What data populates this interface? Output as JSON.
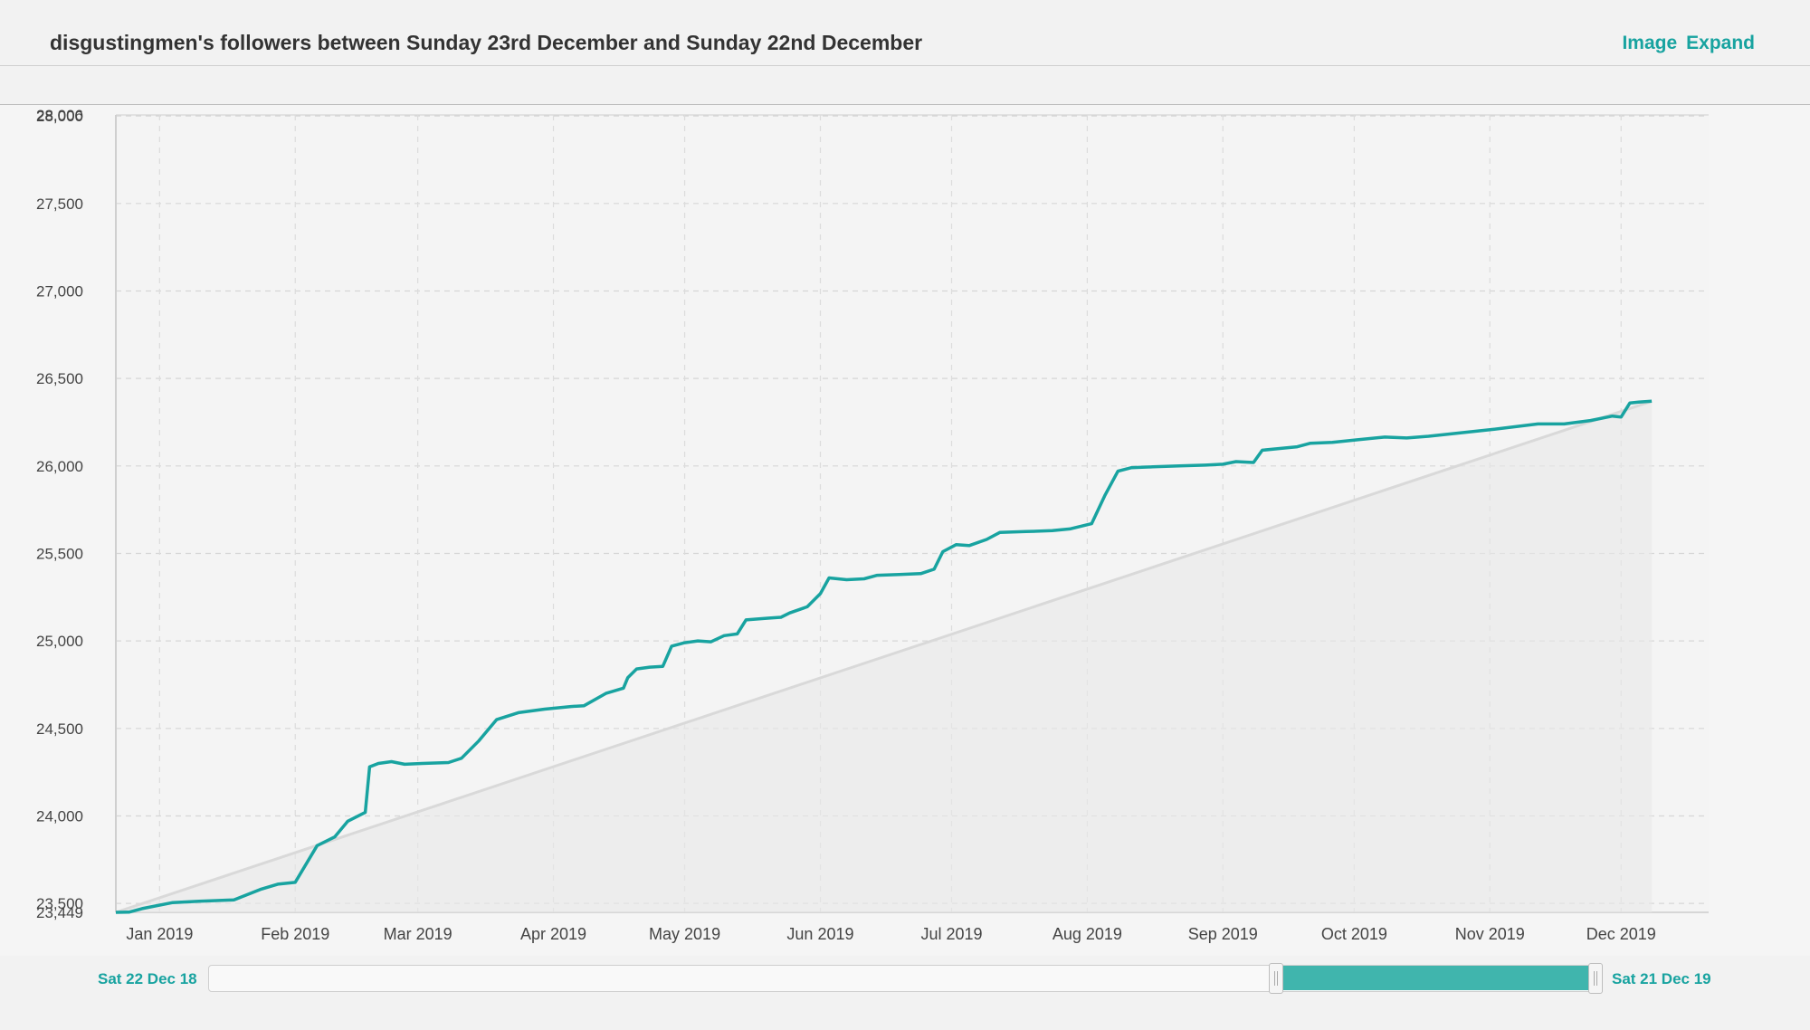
{
  "header": {
    "title": "disgustingmen's followers between Sunday 23rd December and Sunday 22nd December",
    "image_label": "Image",
    "expand_label": "Expand"
  },
  "navigator": {
    "start_label": "Sat 22 Dec 18",
    "end_label": "Sat 21 Dec 19",
    "selection_start_fraction": 0.8,
    "selection_end_fraction": 1.0
  },
  "colors": {
    "series": "#18a3a0",
    "trend": "#d9d9d9",
    "accent": "#18a3a0",
    "navigator_fill": "#40b5ad"
  },
  "chart_data": {
    "type": "line",
    "title": "",
    "xlabel": "",
    "ylabel": "",
    "y_tick_labels": [
      "23,449",
      "23,500",
      "24,000",
      "24,500",
      "25,000",
      "25,500",
      "26,000",
      "26,500",
      "27,000",
      "27,500",
      "28,000",
      "28,006"
    ],
    "x_tick_labels": [
      "Jan 2019",
      "Feb 2019",
      "Mar 2019",
      "Apr 2019",
      "May 2019",
      "Jun 2019",
      "Jul 2019",
      "Aug 2019",
      "Sep 2019",
      "Oct 2019",
      "Nov 2019",
      "Dec 2019"
    ],
    "x_range": [
      "2018-12-22",
      "2019-12-21"
    ],
    "ylim": [
      23449,
      28006
    ],
    "grid": true,
    "legend": "none",
    "series": [
      {
        "role": "followers",
        "points": [
          [
            "2018-12-22",
            23449
          ],
          [
            "2018-12-25",
            23450
          ],
          [
            "2018-12-28",
            23470
          ],
          [
            "2019-01-04",
            23505
          ],
          [
            "2019-01-10",
            23512
          ],
          [
            "2019-01-18",
            23520
          ],
          [
            "2019-01-24",
            23580
          ],
          [
            "2019-01-28",
            23610
          ],
          [
            "2019-02-01",
            23620
          ],
          [
            "2019-02-06",
            23830
          ],
          [
            "2019-02-10",
            23880
          ],
          [
            "2019-02-13",
            23970
          ],
          [
            "2019-02-17",
            24020
          ],
          [
            "2019-02-18",
            24280
          ],
          [
            "2019-02-20",
            24300
          ],
          [
            "2019-02-23",
            24310
          ],
          [
            "2019-02-26",
            24295
          ],
          [
            "2019-03-02",
            24300
          ],
          [
            "2019-03-08",
            24305
          ],
          [
            "2019-03-11",
            24330
          ],
          [
            "2019-03-15",
            24430
          ],
          [
            "2019-03-19",
            24550
          ],
          [
            "2019-03-24",
            24590
          ],
          [
            "2019-03-30",
            24610
          ],
          [
            "2019-04-05",
            24625
          ],
          [
            "2019-04-08",
            24630
          ],
          [
            "2019-04-13",
            24700
          ],
          [
            "2019-04-17",
            24730
          ],
          [
            "2019-04-18",
            24790
          ],
          [
            "2019-04-20",
            24840
          ],
          [
            "2019-04-23",
            24850
          ],
          [
            "2019-04-26",
            24855
          ],
          [
            "2019-04-28",
            24970
          ],
          [
            "2019-05-01",
            24990
          ],
          [
            "2019-05-04",
            25000
          ],
          [
            "2019-05-07",
            24995
          ],
          [
            "2019-05-10",
            25030
          ],
          [
            "2019-05-13",
            25040
          ],
          [
            "2019-05-15",
            25120
          ],
          [
            "2019-05-20",
            25130
          ],
          [
            "2019-05-23",
            25135
          ],
          [
            "2019-05-25",
            25160
          ],
          [
            "2019-05-29",
            25195
          ],
          [
            "2019-06-01",
            25270
          ],
          [
            "2019-06-03",
            25360
          ],
          [
            "2019-06-07",
            25350
          ],
          [
            "2019-06-11",
            25355
          ],
          [
            "2019-06-14",
            25375
          ],
          [
            "2019-06-19",
            25380
          ],
          [
            "2019-06-24",
            25385
          ],
          [
            "2019-06-27",
            25410
          ],
          [
            "2019-06-29",
            25510
          ],
          [
            "2019-07-02",
            25550
          ],
          [
            "2019-07-05",
            25545
          ],
          [
            "2019-07-09",
            25580
          ],
          [
            "2019-07-12",
            25620
          ],
          [
            "2019-07-18",
            25625
          ],
          [
            "2019-07-24",
            25630
          ],
          [
            "2019-07-28",
            25640
          ],
          [
            "2019-08-02",
            25670
          ],
          [
            "2019-08-05",
            25830
          ],
          [
            "2019-08-08",
            25970
          ],
          [
            "2019-08-11",
            25990
          ],
          [
            "2019-08-16",
            25995
          ],
          [
            "2019-08-22",
            26000
          ],
          [
            "2019-08-28",
            26005
          ],
          [
            "2019-09-01",
            26010
          ],
          [
            "2019-09-04",
            26025
          ],
          [
            "2019-09-08",
            26020
          ],
          [
            "2019-09-10",
            26090
          ],
          [
            "2019-09-14",
            26100
          ],
          [
            "2019-09-18",
            26110
          ],
          [
            "2019-09-21",
            26130
          ],
          [
            "2019-09-26",
            26135
          ],
          [
            "2019-10-02",
            26150
          ],
          [
            "2019-10-08",
            26165
          ],
          [
            "2019-10-13",
            26160
          ],
          [
            "2019-10-18",
            26170
          ],
          [
            "2019-11-02",
            26210
          ],
          [
            "2019-11-12",
            26240
          ],
          [
            "2019-11-18",
            26240
          ],
          [
            "2019-11-24",
            26260
          ],
          [
            "2019-11-29",
            26285
          ],
          [
            "2019-12-01",
            26280
          ],
          [
            "2019-12-03",
            26360
          ],
          [
            "2019-12-05",
            26365
          ],
          [
            "2019-12-08",
            26370
          ]
        ]
      }
    ]
  }
}
